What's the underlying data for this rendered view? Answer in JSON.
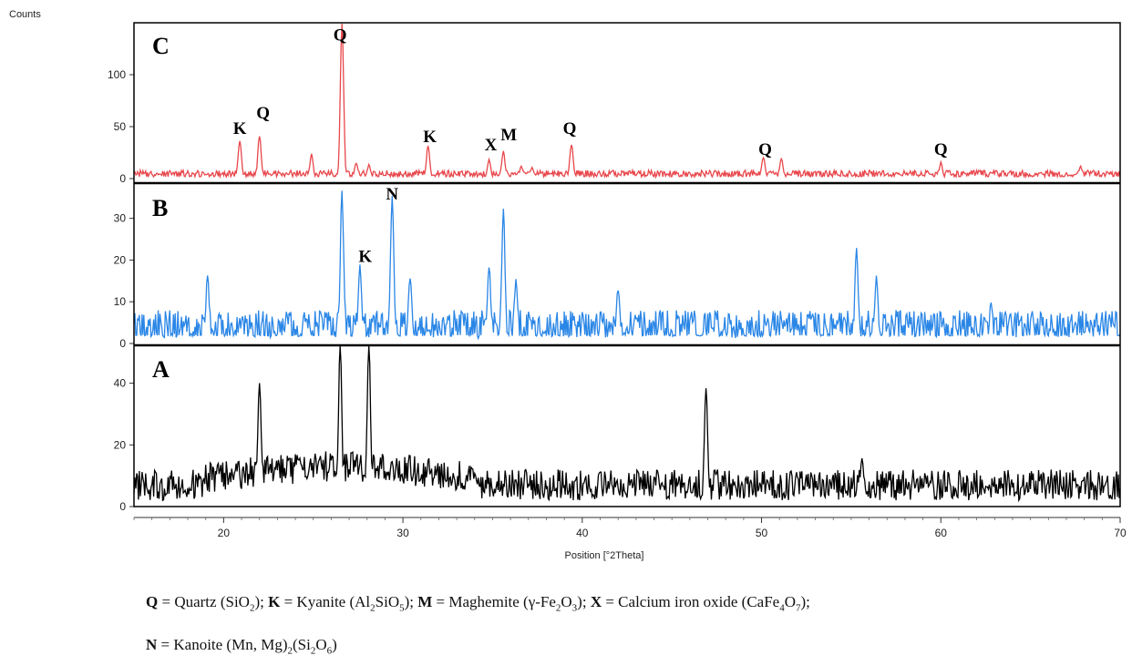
{
  "chart_data": {
    "type": "line",
    "ylabel": "Counts",
    "xlabel": "Position [°2Theta]",
    "xlim": [
      15,
      70
    ],
    "x_ticks": [
      20,
      30,
      40,
      50,
      60,
      70
    ],
    "grid": false,
    "panels": [
      {
        "name": "C",
        "color": "#e8464b",
        "ylim": [
          0,
          150
        ],
        "y_ticks": [
          0,
          50,
          100
        ],
        "noise": {
          "min": 1,
          "max": 8
        },
        "peaks": [
          {
            "x": 20.9,
            "y": 36
          },
          {
            "x": 22.0,
            "y": 40
          },
          {
            "x": 24.9,
            "y": 22
          },
          {
            "x": 26.6,
            "y": 148
          },
          {
            "x": 27.4,
            "y": 14
          },
          {
            "x": 28.1,
            "y": 12
          },
          {
            "x": 31.4,
            "y": 30
          },
          {
            "x": 34.8,
            "y": 17
          },
          {
            "x": 35.6,
            "y": 25
          },
          {
            "x": 36.6,
            "y": 10
          },
          {
            "x": 37.2,
            "y": 10
          },
          {
            "x": 39.4,
            "y": 32
          },
          {
            "x": 50.1,
            "y": 20
          },
          {
            "x": 51.1,
            "y": 18
          },
          {
            "x": 60.0,
            "y": 14
          },
          {
            "x": 67.8,
            "y": 10
          }
        ],
        "annotations": [
          {
            "text": "K",
            "x": 20.9,
            "y": 43
          },
          {
            "text": "Q",
            "x": 22.2,
            "y": 58
          },
          {
            "text": "Q",
            "x": 26.5,
            "y": 133
          },
          {
            "text": "K",
            "x": 31.5,
            "y": 35
          },
          {
            "text": "X",
            "x": 34.9,
            "y": 27
          },
          {
            "text": "M",
            "x": 35.9,
            "y": 37
          },
          {
            "text": "Q",
            "x": 39.3,
            "y": 43
          },
          {
            "text": "Q",
            "x": 50.2,
            "y": 23
          },
          {
            "text": "Q",
            "x": 60.0,
            "y": 23
          }
        ]
      },
      {
        "name": "B",
        "color": "#2a86e6",
        "ylim": [
          0,
          38
        ],
        "y_ticks": [
          0,
          10,
          20,
          30
        ],
        "noise": {
          "min": 0,
          "max": 8
        },
        "peaks": [
          {
            "x": 19.1,
            "y": 15
          },
          {
            "x": 26.6,
            "y": 35
          },
          {
            "x": 27.6,
            "y": 18
          },
          {
            "x": 29.4,
            "y": 34
          },
          {
            "x": 30.4,
            "y": 15
          },
          {
            "x": 34.8,
            "y": 18
          },
          {
            "x": 35.6,
            "y": 31
          },
          {
            "x": 36.3,
            "y": 14
          },
          {
            "x": 42.0,
            "y": 12
          },
          {
            "x": 55.3,
            "y": 21
          },
          {
            "x": 56.4,
            "y": 15
          },
          {
            "x": 62.8,
            "y": 9
          }
        ],
        "annotations": [
          {
            "text": "N",
            "x": 29.4,
            "y": 34.5
          },
          {
            "text": "K",
            "x": 27.9,
            "y": 19.5
          }
        ]
      },
      {
        "name": "A",
        "color": "#000000",
        "ylim": [
          0,
          52
        ],
        "y_ticks": [
          0,
          20,
          40
        ],
        "noise": {
          "min": 2,
          "max": 12
        },
        "peaks": [
          {
            "x": 22.0,
            "y": 40
          },
          {
            "x": 26.5,
            "y": 52
          },
          {
            "x": 28.1,
            "y": 52
          },
          {
            "x": 46.9,
            "y": 38
          },
          {
            "x": 55.6,
            "y": 15
          }
        ],
        "annotations": []
      }
    ]
  },
  "legend": {
    "line1": [
      {
        "bold": "Q",
        "text": " = Quartz (SiO",
        "sub": "2",
        "after": "); "
      },
      {
        "bold": "K",
        "text": " = Kyanite (Al",
        "sub": "2",
        "mid": "SiO",
        "sub2": "5",
        "after": "); "
      },
      {
        "bold": "M",
        "text": " = Maghemite (γ-Fe",
        "sub": "2",
        "mid": "O",
        "sub2": "3",
        "after": "); "
      },
      {
        "bold": "X",
        "text": " = Calcium iron oxide (CaFe",
        "sub": "4",
        "mid": "O",
        "sub2": "7",
        "after": ");"
      }
    ],
    "line2": [
      {
        "bold": "N",
        "text": " = Kanoite (Mn, Mg)",
        "sub": "2",
        "mid": "(Si",
        "sub2": "2",
        "mid2": "O",
        "sub3": "6",
        "after": ")"
      }
    ]
  }
}
